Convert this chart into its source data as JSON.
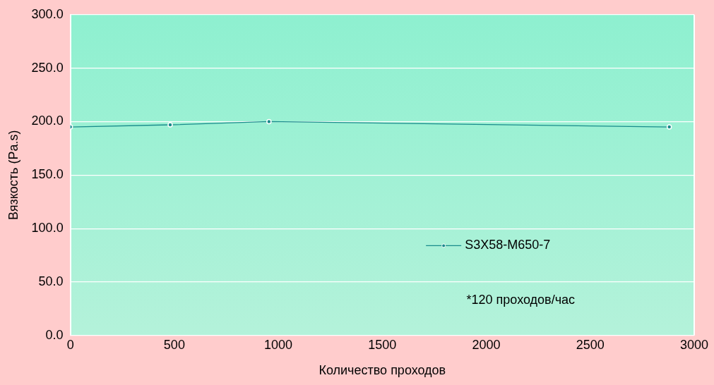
{
  "chart_data": {
    "type": "line",
    "xlabel": "Количество проходов",
    "ylabel": "Вязкость (Pa.s)",
    "x": [
      0,
      480,
      955,
      2880
    ],
    "series": [
      {
        "name": "S3X58-M650-7",
        "color": "#1a8c8c",
        "values": [
          195,
          197,
          200,
          195
        ]
      }
    ],
    "xlim": [
      0,
      3000
    ],
    "xticks": [
      0,
      500,
      1000,
      1500,
      2000,
      2500,
      3000
    ],
    "ylim": [
      0,
      300
    ],
    "yticks": [
      {
        "value": 0,
        "label": "0.0"
      },
      {
        "value": 50,
        "label": "50.0"
      },
      {
        "value": 100,
        "label": "100.0"
      },
      {
        "value": 150,
        "label": "150.0"
      },
      {
        "value": 200,
        "label": "200.0"
      },
      {
        "value": 250,
        "label": "250.0"
      },
      {
        "value": 300,
        "label": "300.0"
      }
    ],
    "grid": "y",
    "legend": "right",
    "marker": "circle",
    "line_style": "solid",
    "annotations": [
      "*120 проходов/час"
    ]
  }
}
